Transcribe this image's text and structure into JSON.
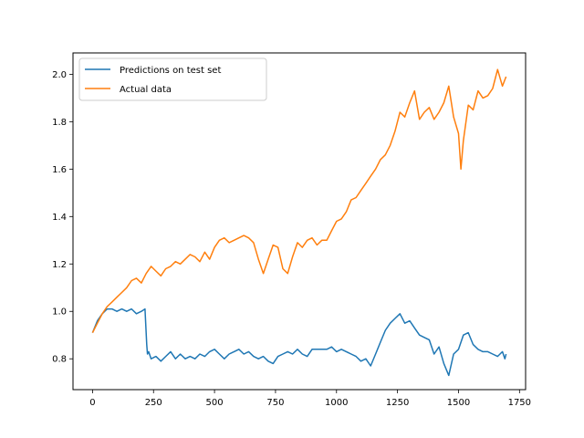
{
  "chart_data": {
    "type": "line",
    "title": "",
    "xlabel": "",
    "ylabel": "",
    "xlim": [
      -80,
      1775
    ],
    "ylim": [
      0.67,
      2.09
    ],
    "xticks": [
      0,
      250,
      500,
      750,
      1000,
      1250,
      1500,
      1750
    ],
    "yticks": [
      0.8,
      1.0,
      1.2,
      1.4,
      1.6,
      1.8,
      2.0
    ],
    "xtick_labels": [
      "0",
      "250",
      "500",
      "750",
      "1000",
      "1250",
      "1500",
      "1750"
    ],
    "ytick_labels": [
      "0.8",
      "1.0",
      "1.2",
      "1.4",
      "1.6",
      "1.8",
      "2.0"
    ],
    "grid": false,
    "legend_position": "top-left",
    "series": [
      {
        "name": "Predictions on test set",
        "color": "#1f77b4",
        "x": [
          0,
          20,
          40,
          60,
          80,
          100,
          120,
          140,
          160,
          180,
          200,
          215,
          222,
          225,
          230,
          240,
          260,
          280,
          300,
          320,
          340,
          360,
          380,
          400,
          420,
          440,
          460,
          480,
          500,
          520,
          540,
          560,
          580,
          600,
          620,
          640,
          660,
          680,
          700,
          720,
          740,
          760,
          780,
          800,
          820,
          840,
          860,
          880,
          900,
          920,
          940,
          960,
          980,
          1000,
          1020,
          1040,
          1060,
          1080,
          1100,
          1120,
          1140,
          1160,
          1180,
          1200,
          1220,
          1240,
          1260,
          1280,
          1300,
          1320,
          1340,
          1360,
          1380,
          1400,
          1420,
          1440,
          1460,
          1480,
          1500,
          1520,
          1540,
          1560,
          1580,
          1600,
          1620,
          1640,
          1660,
          1680,
          1690,
          1695
        ],
        "values": [
          0.91,
          0.96,
          0.99,
          1.01,
          1.01,
          1.0,
          1.01,
          1.0,
          1.01,
          0.99,
          1.0,
          1.01,
          0.86,
          0.82,
          0.83,
          0.8,
          0.81,
          0.79,
          0.81,
          0.83,
          0.8,
          0.82,
          0.8,
          0.81,
          0.8,
          0.82,
          0.81,
          0.83,
          0.84,
          0.82,
          0.8,
          0.82,
          0.83,
          0.84,
          0.82,
          0.83,
          0.81,
          0.8,
          0.81,
          0.79,
          0.78,
          0.81,
          0.82,
          0.83,
          0.82,
          0.84,
          0.82,
          0.81,
          0.84,
          0.84,
          0.84,
          0.84,
          0.85,
          0.83,
          0.84,
          0.83,
          0.82,
          0.81,
          0.79,
          0.8,
          0.77,
          0.82,
          0.87,
          0.92,
          0.95,
          0.97,
          0.99,
          0.95,
          0.96,
          0.93,
          0.9,
          0.89,
          0.88,
          0.82,
          0.85,
          0.78,
          0.73,
          0.82,
          0.84,
          0.9,
          0.91,
          0.86,
          0.84,
          0.83,
          0.83,
          0.82,
          0.81,
          0.83,
          0.8,
          0.82
        ]
      },
      {
        "name": "Actual data",
        "color": "#ff7f0e",
        "x": [
          0,
          20,
          40,
          60,
          80,
          100,
          120,
          140,
          160,
          180,
          200,
          220,
          240,
          260,
          280,
          300,
          320,
          340,
          360,
          380,
          400,
          420,
          440,
          460,
          480,
          500,
          520,
          540,
          560,
          580,
          600,
          620,
          640,
          660,
          680,
          700,
          720,
          740,
          760,
          780,
          800,
          820,
          840,
          860,
          880,
          900,
          920,
          940,
          960,
          980,
          1000,
          1020,
          1040,
          1060,
          1080,
          1100,
          1120,
          1140,
          1160,
          1180,
          1200,
          1220,
          1240,
          1260,
          1280,
          1300,
          1320,
          1340,
          1360,
          1380,
          1400,
          1420,
          1440,
          1460,
          1480,
          1500,
          1510,
          1520,
          1540,
          1560,
          1580,
          1600,
          1620,
          1640,
          1660,
          1680,
          1695
        ],
        "values": [
          0.91,
          0.95,
          0.99,
          1.02,
          1.04,
          1.06,
          1.08,
          1.1,
          1.13,
          1.14,
          1.12,
          1.16,
          1.19,
          1.17,
          1.15,
          1.18,
          1.19,
          1.21,
          1.2,
          1.22,
          1.24,
          1.23,
          1.21,
          1.25,
          1.22,
          1.27,
          1.3,
          1.31,
          1.29,
          1.3,
          1.31,
          1.32,
          1.31,
          1.29,
          1.22,
          1.16,
          1.22,
          1.28,
          1.27,
          1.18,
          1.16,
          1.23,
          1.29,
          1.27,
          1.3,
          1.31,
          1.28,
          1.3,
          1.3,
          1.34,
          1.38,
          1.39,
          1.42,
          1.47,
          1.48,
          1.51,
          1.54,
          1.57,
          1.6,
          1.64,
          1.66,
          1.7,
          1.76,
          1.84,
          1.82,
          1.88,
          1.93,
          1.81,
          1.84,
          1.86,
          1.81,
          1.84,
          1.88,
          1.95,
          1.82,
          1.75,
          1.6,
          1.72,
          1.87,
          1.85,
          1.93,
          1.9,
          1.91,
          1.94,
          2.02,
          1.95,
          1.99
        ]
      }
    ]
  }
}
